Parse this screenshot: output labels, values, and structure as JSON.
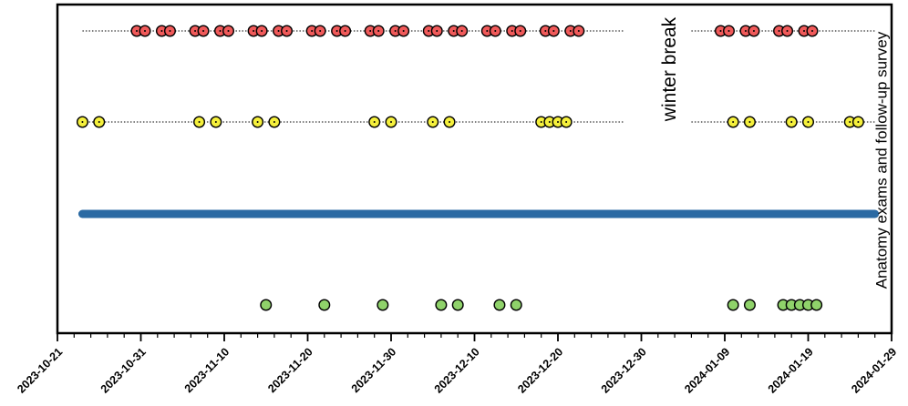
{
  "chart_data": {
    "type": "scatter",
    "title": "",
    "xlabel": "",
    "ylabel": "",
    "grid": false,
    "x_axis": {
      "type": "date",
      "range": [
        "2023-10-21",
        "2024-01-29"
      ],
      "tick_labels": [
        "2023-10-21",
        "2023-10-31",
        "2023-11-10",
        "2023-11-20",
        "2023-11-30",
        "2023-12-10",
        "2023-12-20",
        "2023-12-30",
        "2024-01-09",
        "2024-01-19",
        "2024-01-29"
      ]
    },
    "series": [
      {
        "style": "pair-markers",
        "color": "#f05a5a",
        "line_style": "dotted",
        "line_range": [
          [
            "2023-10-24",
            "2023-12-28"
          ],
          [
            "2024-01-05",
            "2024-01-27"
          ]
        ],
        "x": [
          "2023-10-31",
          "2023-11-03",
          "2023-11-07",
          "2023-11-10",
          "2023-11-14",
          "2023-11-17",
          "2023-11-21",
          "2023-11-24",
          "2023-11-28",
          "2023-12-01",
          "2023-12-05",
          "2023-12-08",
          "2023-12-12",
          "2023-12-15",
          "2023-12-19",
          "2023-12-22",
          "2024-01-09",
          "2024-01-12",
          "2024-01-16",
          "2024-01-19"
        ]
      },
      {
        "style": "dot-markers",
        "color": "#f5f03c",
        "line_style": "dotted",
        "line_range": [
          [
            "2023-10-24",
            "2023-12-28"
          ],
          [
            "2024-01-05",
            "2024-01-27"
          ]
        ],
        "x": [
          "2023-10-24",
          "2023-10-26",
          "2023-11-07",
          "2023-11-09",
          "2023-11-14",
          "2023-11-16",
          "2023-11-28",
          "2023-11-30",
          "2023-12-05",
          "2023-12-07",
          "2023-12-18",
          "2023-12-19",
          "2023-12-20",
          "2023-12-21",
          "2024-01-10",
          "2024-01-12",
          "2024-01-17",
          "2024-01-19",
          "2024-01-24",
          "2024-01-25"
        ]
      },
      {
        "style": "line",
        "color": "#2b6aa3",
        "x": [
          "2023-10-24",
          "2024-01-27"
        ]
      },
      {
        "style": "markers",
        "color": "#8fd26a",
        "x": [
          "2023-11-15",
          "2023-11-22",
          "2023-11-29",
          "2023-12-06",
          "2023-12-08",
          "2023-12-13",
          "2023-12-15",
          "2024-01-10",
          "2024-01-12",
          "2024-01-16",
          "2024-01-17",
          "2024-01-18",
          "2024-01-19",
          "2024-01-20"
        ]
      }
    ],
    "annotations": [
      {
        "text": "winter break",
        "x": "2023-12-31",
        "orientation": "vertical"
      },
      {
        "text": "Anatomy exams and follow-up survey",
        "x": "2024-01-29",
        "orientation": "vertical"
      }
    ]
  }
}
